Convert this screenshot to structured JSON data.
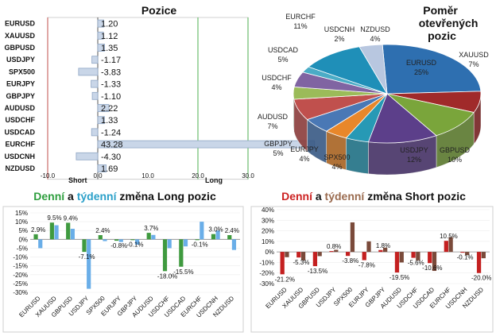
{
  "chart_data": [
    {
      "type": "bar",
      "orientation": "horizontal",
      "title": "Pozice",
      "categories": [
        "EURUSD",
        "XAUUSD",
        "GBPUSD",
        "USDJPY",
        "SPX500",
        "EURJPY",
        "GBPJPY",
        "AUDUSD",
        "USDCHF",
        "USDCAD",
        "EURCHF",
        "USDCNH",
        "NZDUSD"
      ],
      "values": [
        1.2,
        1.12,
        1.35,
        -1.17,
        -3.83,
        -1.33,
        -1.1,
        2.22,
        1.33,
        -1.24,
        43.28,
        -4.3,
        1.69
      ],
      "value_labels": [
        "1.20",
        "1.12",
        "1.35",
        "-1.17",
        "-3.83",
        "-1.33",
        "-1.10",
        "2.22",
        "1.33",
        "-1.24",
        "43.28",
        "-4.30",
        "1.69"
      ],
      "xlim": [
        -10,
        30
      ],
      "xticks": [
        "-10.0",
        "0.0",
        "10.0",
        "20.0",
        "30.0"
      ],
      "annotations": [
        "Short",
        "Long"
      ],
      "colors": {
        "bar": "#c9d6e8",
        "bar_edge": "#8ea5c4",
        "line_red": "#c0504d",
        "line_green": "#4caf50"
      }
    },
    {
      "type": "pie",
      "title": "Poměr otevřených pozic",
      "slices": [
        {
          "label": "EURUSD",
          "pct": "25%",
          "value": 25,
          "color": "#2e6fb0"
        },
        {
          "label": "XAUUSD",
          "pct": "7%",
          "value": 7,
          "color": "#a02a2a"
        },
        {
          "label": "GBPUSD",
          "pct": "10%",
          "value": 10,
          "color": "#7aa53b"
        },
        {
          "label": "USDJPY",
          "pct": "12%",
          "value": 12,
          "color": "#5c3f8a"
        },
        {
          "label": "SPX500",
          "pct": "4%",
          "value": 4,
          "color": "#2799b5"
        },
        {
          "label": "EURJPY",
          "pct": "4%",
          "value": 4,
          "color": "#e8872a"
        },
        {
          "label": "GBPJPY",
          "pct": "5%",
          "value": 5,
          "color": "#4a78b5"
        },
        {
          "label": "AUDUSD",
          "pct": "7%",
          "value": 7,
          "color": "#c0504d"
        },
        {
          "label": "USDCHF",
          "pct": "4%",
          "value": 4,
          "color": "#9bbb59"
        },
        {
          "label": "USDCAD",
          "pct": "5%",
          "value": 5,
          "color": "#8064a2"
        },
        {
          "label": "USDCNH",
          "pct": "2%",
          "value": 2,
          "color": "#4bacc6"
        },
        {
          "label": "EURCHF",
          "pct": "11%",
          "value": 11,
          "color": "#1f8fb8"
        },
        {
          "label": "NZDUSD",
          "pct": "4%",
          "value": 4,
          "color": "#b8c7e0"
        }
      ]
    },
    {
      "type": "bar",
      "title_parts": [
        {
          "text": "Denní",
          "color": "#2e9e3e"
        },
        {
          "text": " a ",
          "color": "#111111"
        },
        {
          "text": "týdenní",
          "color": "#2ba0c9"
        },
        {
          "text": " změna Long pozic",
          "color": "#111111"
        }
      ],
      "categories": [
        "EURUSD",
        "XAUUSD",
        "GBPUSD",
        "USDJPY",
        "SPX500",
        "EURJPY",
        "GBPJPY",
        "AUDUSD",
        "USDCHF",
        "USDCAD",
        "EURCHF",
        "USDCNH",
        "NZDUSD"
      ],
      "series": [
        {
          "values": [
            2.9,
            9.5,
            9.4,
            -7.1,
            2.4,
            -0.8,
            -0.1,
            3.7,
            -18.0,
            -15.5,
            -0.1,
            3.0,
            2.4
          ],
          "color": "#3f9a3f"
        },
        {
          "values": [
            -5.0,
            8.0,
            6.0,
            -28.0,
            -1.0,
            -1.5,
            -3.0,
            2.5,
            -5.0,
            -4.0,
            10.0,
            5.0,
            -6.0
          ],
          "color": "#6aaee8"
        }
      ],
      "data_labels": [
        {
          "text": "2.9%",
          "series": 0,
          "cat": 0
        },
        {
          "text": "9.5%",
          "series": 0,
          "cat": 1
        },
        {
          "text": "9.4%",
          "series": 0,
          "cat": 2
        },
        {
          "text": "-7.1%",
          "series": 0,
          "cat": 3
        },
        {
          "text": "2.4%",
          "series": 0,
          "cat": 4
        },
        {
          "text": "-0.8%",
          "series": 0,
          "cat": 5
        },
        {
          "text": "-0.1%",
          "series": 0,
          "cat": 6
        },
        {
          "text": "3.7%",
          "series": 0,
          "cat": 7
        },
        {
          "text": "-18.0%",
          "series": 0,
          "cat": 8
        },
        {
          "text": "-15.5%",
          "series": 0,
          "cat": 9
        },
        {
          "text": "-0.1%",
          "series": 0,
          "cat": 10
        },
        {
          "text": "3.0%",
          "series": 0,
          "cat": 11
        },
        {
          "text": "2.4%",
          "series": 0,
          "cat": 12
        }
      ],
      "ylim": [
        -30,
        15
      ],
      "yticks": [
        "15%",
        "10%",
        "5%",
        "0%",
        "-5%",
        "-10%",
        "-15%",
        "-20%",
        "-25%",
        "-30%"
      ]
    },
    {
      "type": "bar",
      "title_parts": [
        {
          "text": "Denní",
          "color": "#cc2222"
        },
        {
          "text": " a ",
          "color": "#111111"
        },
        {
          "text": "týdenní",
          "color": "#9a6b4f"
        },
        {
          "text": " změna Short pozic",
          "color": "#111111"
        }
      ],
      "categories": [
        "EURUSD",
        "XAUUSD",
        "GBPUSD",
        "USDJPY",
        "SPX500",
        "EURJPY",
        "GBPJPY",
        "AUDUSD",
        "USDCHF",
        "USDCAD",
        "EURCHF",
        "USDCNH",
        "NZDUSD"
      ],
      "series": [
        {
          "values": [
            -21.2,
            -5.3,
            -13.5,
            0.8,
            -3.8,
            -7.8,
            1.8,
            -19.5,
            -5.6,
            -10.6,
            10.5,
            -0.1,
            -20.0
          ],
          "color": "#c42020"
        },
        {
          "values": [
            -5.0,
            -8.0,
            -4.0,
            2.0,
            28.0,
            10.0,
            4.0,
            -10.0,
            -8.0,
            -18.0,
            14.0,
            -3.0,
            -6.0
          ],
          "color": "#7a4a3a"
        }
      ],
      "data_labels": [
        {
          "text": "-21.2%",
          "series": 0,
          "cat": 0
        },
        {
          "text": "-5.3%",
          "series": 0,
          "cat": 1
        },
        {
          "text": "-13.5%",
          "series": 0,
          "cat": 2
        },
        {
          "text": "0.8%",
          "series": 0,
          "cat": 3
        },
        {
          "text": "-3.8%",
          "series": 0,
          "cat": 4
        },
        {
          "text": "-7.8%",
          "series": 0,
          "cat": 5
        },
        {
          "text": "1.8%",
          "series": 0,
          "cat": 6
        },
        {
          "text": "-19.5%",
          "series": 0,
          "cat": 7
        },
        {
          "text": "-5.6%",
          "series": 0,
          "cat": 8
        },
        {
          "text": "-10.6%",
          "series": 0,
          "cat": 9
        },
        {
          "text": "10.5%",
          "series": 0,
          "cat": 10
        },
        {
          "text": "-0.1%",
          "series": 0,
          "cat": 11
        },
        {
          "text": "-20.0%",
          "series": 0,
          "cat": 12
        }
      ],
      "ylim": [
        -30,
        40
      ],
      "yticks": [
        "40%",
        "30%",
        "20%",
        "10%",
        "0%",
        "-10%",
        "-20%",
        "-30%"
      ]
    }
  ]
}
